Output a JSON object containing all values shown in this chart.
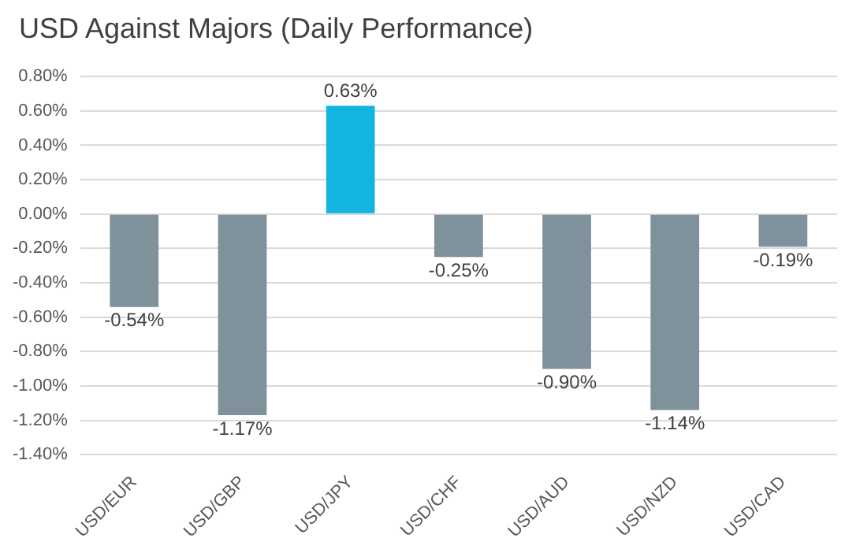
{
  "chart_data": {
    "type": "bar",
    "title": "USD Against Majors (Daily Performance)",
    "categories": [
      "USD/EUR",
      "USD/GBP",
      "USD/JPY",
      "USD/CHF",
      "USD/AUD",
      "USD/NZD",
      "USD/CAD"
    ],
    "values": [
      -0.54,
      -1.17,
      0.63,
      -0.25,
      -0.9,
      -1.14,
      -0.19
    ],
    "colors": [
      "#7f919a",
      "#7f919a",
      "#13b5e0",
      "#7f919a",
      "#7f919a",
      "#7f919a",
      "#7f919a"
    ],
    "value_labels": [
      "-0.54%",
      "-1.17%",
      "0.63%",
      "-0.25%",
      "-0.90%",
      "-1.14%",
      "-0.19%"
    ],
    "ylim": [
      -1.4,
      0.8
    ],
    "yticks": [
      {
        "value": -1.4,
        "label": "-1.40%"
      },
      {
        "value": -1.2,
        "label": "-1.20%"
      },
      {
        "value": -1,
        "label": "-1.00%"
      },
      {
        "value": -0.8,
        "label": "-0.80%"
      },
      {
        "value": -0.6,
        "label": "-0.60%"
      },
      {
        "value": -0.4,
        "label": "-0.40%"
      },
      {
        "value": -0.2,
        "label": "-0.20%"
      },
      {
        "value": 0,
        "label": "0.00%"
      },
      {
        "value": 0.2,
        "label": "0.20%"
      },
      {
        "value": 0.4,
        "label": "0.40%"
      },
      {
        "value": 0.6,
        "label": "0.60%"
      },
      {
        "value": 0.8,
        "label": "0.80%"
      }
    ],
    "grid": "y",
    "legend": false
  }
}
